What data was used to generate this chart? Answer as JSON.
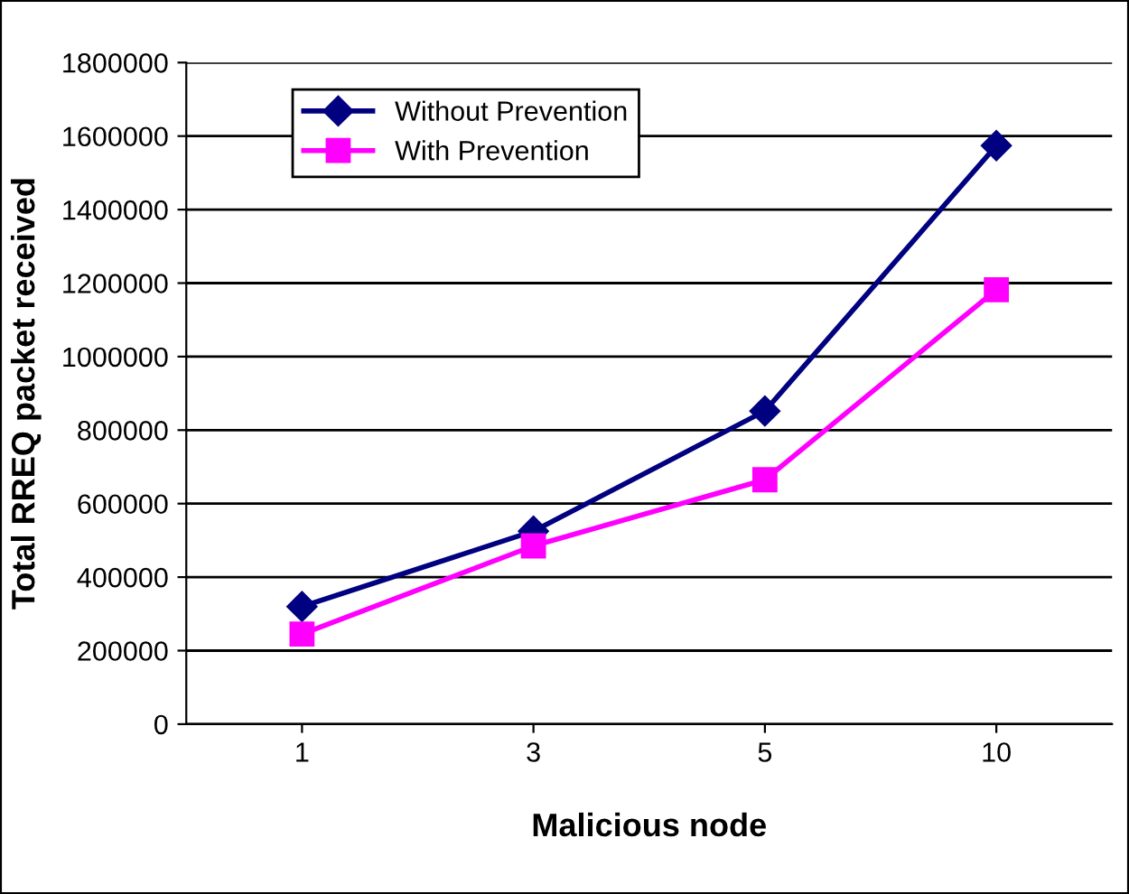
{
  "chart_data": {
    "type": "line",
    "xlabel": "Malicious node",
    "ylabel": "Total RREQ packet received",
    "categories": [
      "1",
      "3",
      "5",
      "10"
    ],
    "series": [
      {
        "name": "Without Prevention",
        "color": "#000080",
        "marker": "diamond",
        "values": [
          320000,
          525000,
          852000,
          1574000
        ]
      },
      {
        "name": "With Prevention",
        "color": "#ff00ff",
        "marker": "square",
        "values": [
          245000,
          485000,
          665000,
          1182000
        ]
      }
    ],
    "ylim": [
      0,
      1800000
    ],
    "yticks": [
      0,
      200000,
      400000,
      600000,
      800000,
      1000000,
      1200000,
      1400000,
      1600000,
      1800000
    ],
    "grid": "y",
    "legend": "top left",
    "line_style": "solid"
  }
}
